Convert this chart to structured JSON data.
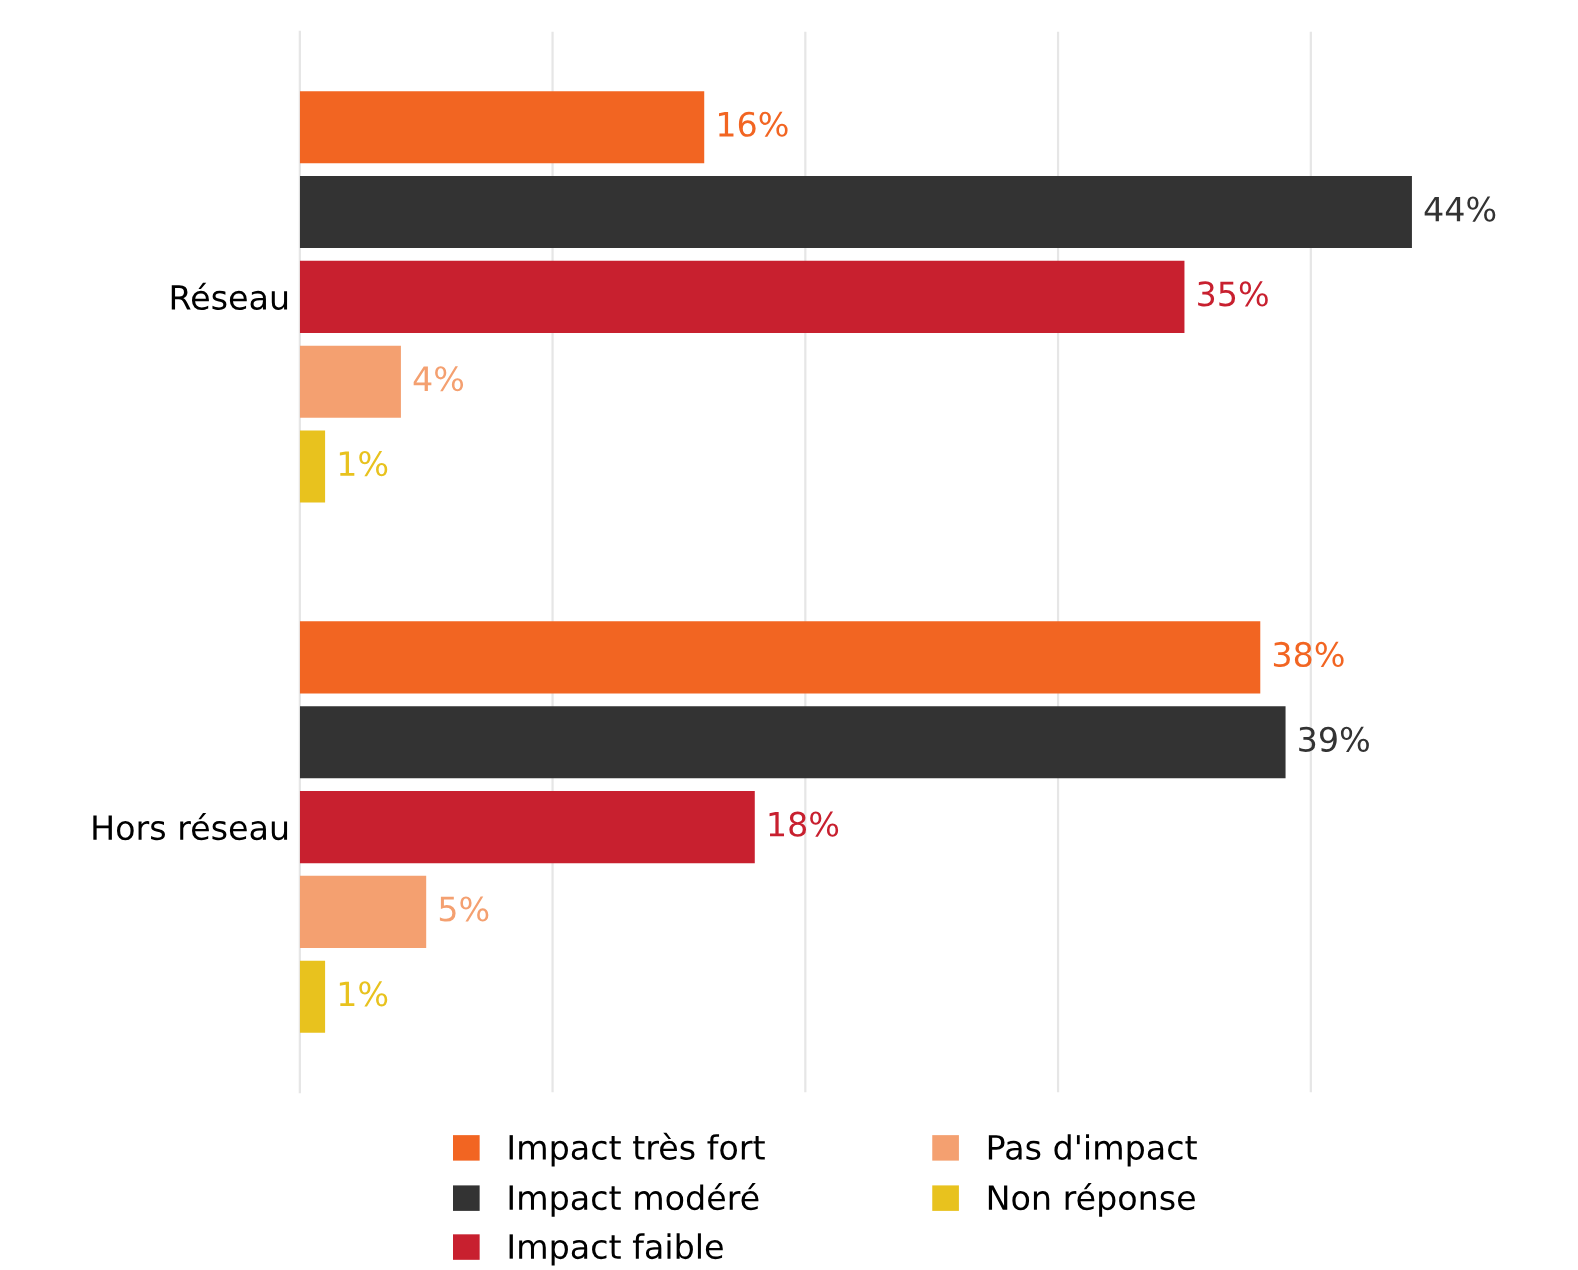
{
  "chart_data": {
    "type": "bar",
    "orientation": "horizontal",
    "categories": [
      "Réseau",
      "Hors réseau"
    ],
    "series": [
      {
        "name": "Impact très fort",
        "color": "#f26522",
        "values": [
          16,
          38
        ],
        "value_labels": [
          "16%",
          "38%"
        ]
      },
      {
        "name": "Impact modéré",
        "color": "#333333",
        "values": [
          44,
          39
        ],
        "value_labels": [
          "44%",
          "39%"
        ]
      },
      {
        "name": "Impact faible",
        "color": "#c8202f",
        "values": [
          35,
          18
        ],
        "value_labels": [
          "35%",
          "18%"
        ]
      },
      {
        "name": "Pas d'impact",
        "color": "#f4a070",
        "values": [
          4,
          5
        ],
        "value_labels": [
          "4%",
          "5%"
        ]
      },
      {
        "name": "Non réponse",
        "color": "#e8c21e",
        "values": [
          1,
          1
        ],
        "value_labels": [
          "1%",
          "1%"
        ]
      }
    ],
    "tick_labels": "y",
    "grid": "x",
    "legend": "bottom"
  }
}
